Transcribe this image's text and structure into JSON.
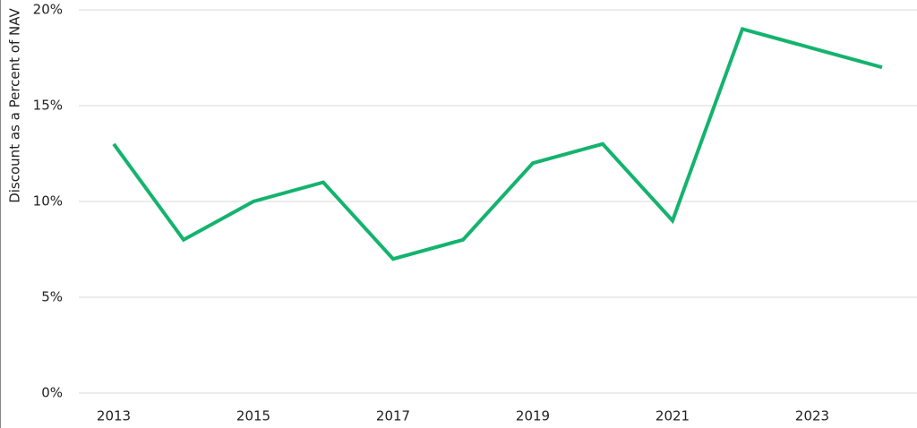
{
  "chart_data": {
    "type": "line",
    "y_label": "Discount as a Percent of NAV",
    "x": [
      2013,
      2014,
      2015,
      2016,
      2017,
      2018,
      2019,
      2020,
      2021,
      2022,
      2023,
      2024
    ],
    "values": [
      13,
      8,
      10,
      11,
      7,
      8,
      12,
      13,
      9,
      19,
      18,
      17
    ],
    "color": "#14b36e",
    "xlim": [
      2012.5,
      2024.5
    ],
    "xticks": [
      2013,
      2015,
      2017,
      2019,
      2021,
      2023
    ],
    "ylim": [
      0,
      20
    ],
    "yticks": [
      {
        "value": 0,
        "label": "0%"
      },
      {
        "value": 5,
        "label": "5%"
      },
      {
        "value": 10,
        "label": "10%"
      },
      {
        "value": 15,
        "label": "15%"
      },
      {
        "value": 20,
        "label": "20%"
      }
    ],
    "grid": true
  }
}
